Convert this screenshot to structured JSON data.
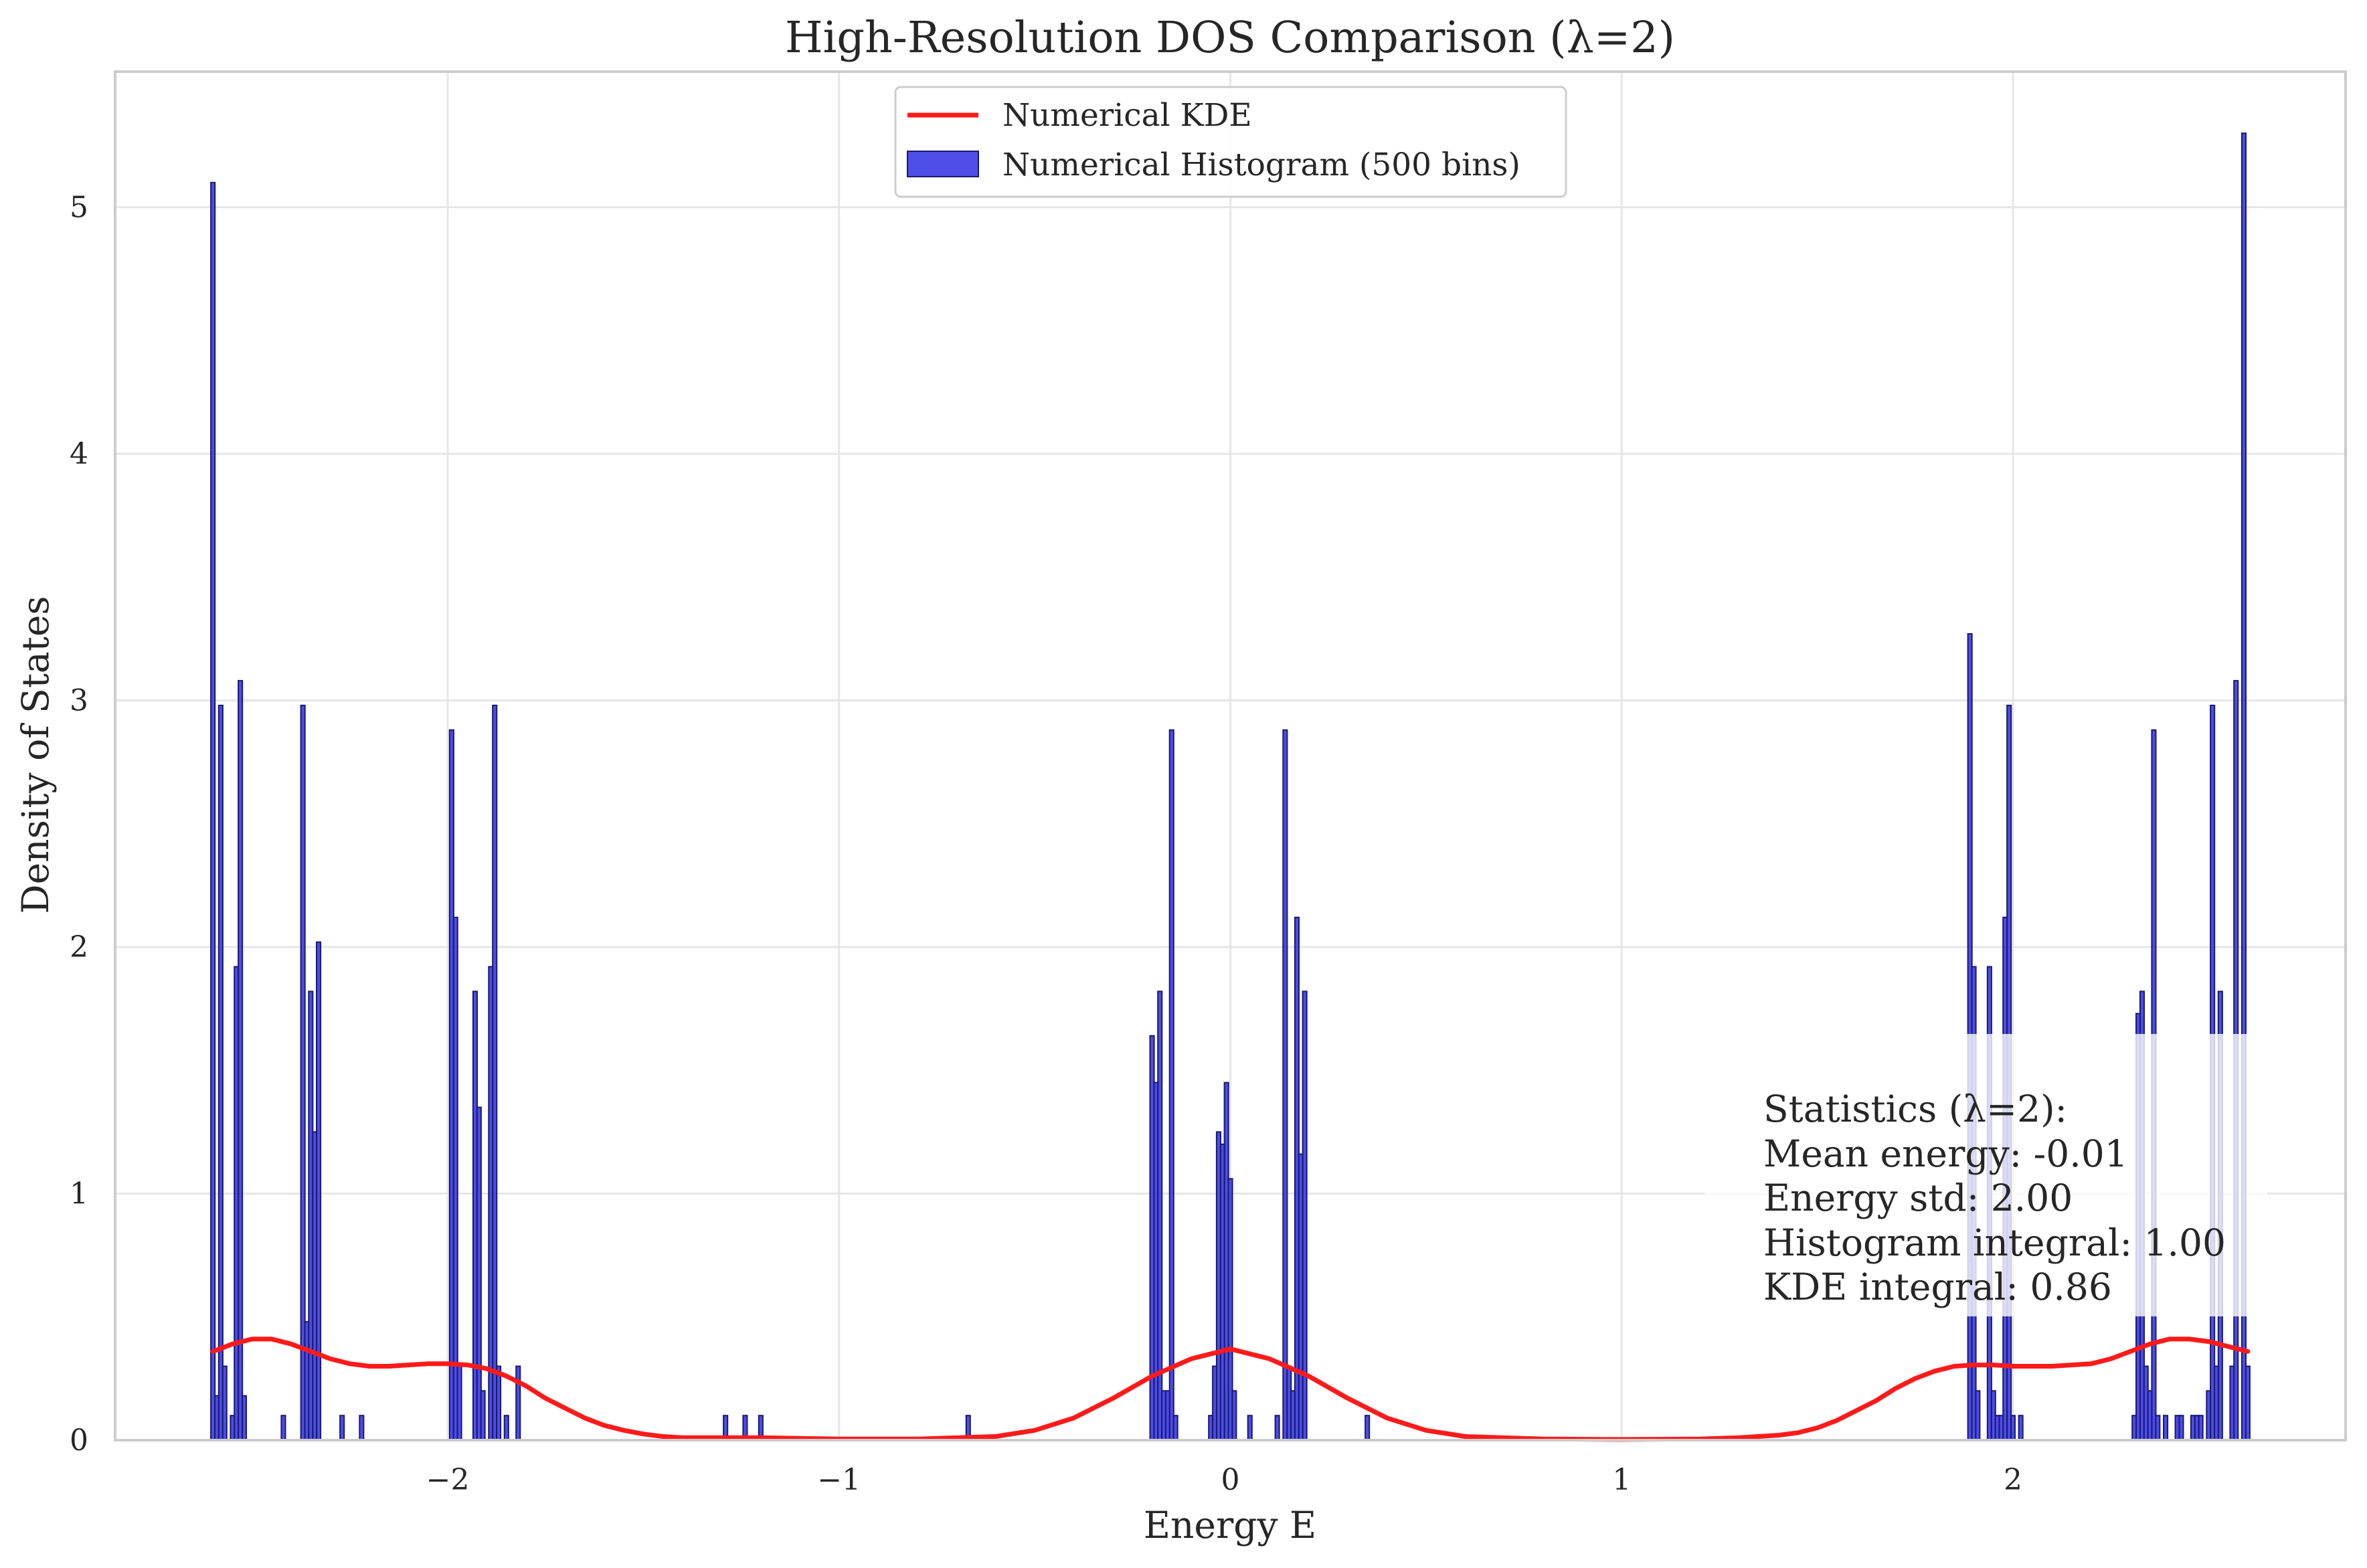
{
  "chart_data": {
    "type": "bar",
    "title": "High-Resolution DOS Comparison (λ=2)",
    "xlabel": "Energy E",
    "ylabel": "Density of States",
    "xlim": [
      -2.85,
      2.85
    ],
    "ylim": [
      0,
      5.55
    ],
    "xticks": [
      {
        "value": -2,
        "label": "−2"
      },
      {
        "value": -1,
        "label": "−1"
      },
      {
        "value": 0,
        "label": "0"
      },
      {
        "value": 1,
        "label": "1"
      },
      {
        "value": 2,
        "label": "2"
      }
    ],
    "yticks": [
      {
        "value": 0,
        "label": "0"
      },
      {
        "value": 1,
        "label": "1"
      },
      {
        "value": 2,
        "label": "2"
      },
      {
        "value": 3,
        "label": "3"
      },
      {
        "value": 4,
        "label": "4"
      },
      {
        "value": 5,
        "label": "5"
      }
    ],
    "grid": true,
    "legend_position": "upper center",
    "colors": {
      "histogram": "#3a3ae6",
      "histogram_edge": "#1a1a6e",
      "kde": "#ff1a1a",
      "grid": "#e6e6e6",
      "spine": "#cccccc"
    },
    "series": [
      {
        "name": "Numerical Histogram (500 bins)",
        "kind": "histogram",
        "bin_width": 0.0104,
        "bins": [
          [
            -2.6,
            5.1
          ],
          [
            -2.59,
            0.18
          ],
          [
            -2.58,
            2.98
          ],
          [
            -2.57,
            0.3
          ],
          [
            -2.55,
            0.1
          ],
          [
            -2.54,
            1.92
          ],
          [
            -2.53,
            3.08
          ],
          [
            -2.52,
            0.18
          ],
          [
            -2.42,
            0.1
          ],
          [
            -2.37,
            2.98
          ],
          [
            -2.36,
            0.48
          ],
          [
            -2.35,
            1.82
          ],
          [
            -2.34,
            1.25
          ],
          [
            -2.33,
            2.02
          ],
          [
            -2.27,
            0.1
          ],
          [
            -2.22,
            0.1
          ],
          [
            -1.99,
            2.88
          ],
          [
            -1.98,
            2.12
          ],
          [
            -1.97,
            0.3
          ],
          [
            -1.93,
            1.82
          ],
          [
            -1.92,
            1.35
          ],
          [
            -1.91,
            0.2
          ],
          [
            -1.89,
            1.92
          ],
          [
            -1.88,
            2.98
          ],
          [
            -1.87,
            0.3
          ],
          [
            -1.85,
            0.1
          ],
          [
            -1.82,
            0.3
          ],
          [
            -1.29,
            0.1
          ],
          [
            -1.24,
            0.1
          ],
          [
            -1.2,
            0.1
          ],
          [
            -0.67,
            0.1
          ],
          [
            -0.2,
            1.64
          ],
          [
            -0.19,
            1.45
          ],
          [
            -0.18,
            1.82
          ],
          [
            -0.17,
            0.2
          ],
          [
            -0.16,
            0.2
          ],
          [
            -0.15,
            2.88
          ],
          [
            -0.14,
            0.1
          ],
          [
            -0.05,
            0.1
          ],
          [
            -0.04,
            0.3
          ],
          [
            -0.03,
            1.25
          ],
          [
            -0.02,
            1.2
          ],
          [
            -0.01,
            1.45
          ],
          [
            0.0,
            1.06
          ],
          [
            0.01,
            0.2
          ],
          [
            0.05,
            0.1
          ],
          [
            0.12,
            0.1
          ],
          [
            0.14,
            2.88
          ],
          [
            0.15,
            0.3
          ],
          [
            0.16,
            0.2
          ],
          [
            0.17,
            2.12
          ],
          [
            0.18,
            1.16
          ],
          [
            0.19,
            1.82
          ],
          [
            0.35,
            0.1
          ],
          [
            1.89,
            3.27
          ],
          [
            1.9,
            1.92
          ],
          [
            1.91,
            0.2
          ],
          [
            1.94,
            1.92
          ],
          [
            1.95,
            0.2
          ],
          [
            1.96,
            0.1
          ],
          [
            1.97,
            0.1
          ],
          [
            1.98,
            2.12
          ],
          [
            1.99,
            2.98
          ],
          [
            2.0,
            0.1
          ],
          [
            2.02,
            0.1
          ],
          [
            2.31,
            0.1
          ],
          [
            2.32,
            1.73
          ],
          [
            2.33,
            1.82
          ],
          [
            2.34,
            0.3
          ],
          [
            2.35,
            0.2
          ],
          [
            2.36,
            2.88
          ],
          [
            2.37,
            0.1
          ],
          [
            2.39,
            0.1
          ],
          [
            2.42,
            0.1
          ],
          [
            2.43,
            0.1
          ],
          [
            2.46,
            0.1
          ],
          [
            2.47,
            0.1
          ],
          [
            2.48,
            0.1
          ],
          [
            2.5,
            0.2
          ],
          [
            2.51,
            2.98
          ],
          [
            2.52,
            0.3
          ],
          [
            2.53,
            1.82
          ],
          [
            2.56,
            0.3
          ],
          [
            2.57,
            3.08
          ],
          [
            2.59,
            5.3
          ],
          [
            2.6,
            0.3
          ]
        ]
      },
      {
        "name": "Numerical KDE",
        "kind": "line",
        "x": [
          -2.6,
          -2.55,
          -2.5,
          -2.45,
          -2.4,
          -2.35,
          -2.3,
          -2.25,
          -2.2,
          -2.15,
          -2.1,
          -2.05,
          -2.0,
          -1.95,
          -1.9,
          -1.85,
          -1.8,
          -1.75,
          -1.7,
          -1.65,
          -1.6,
          -1.55,
          -1.5,
          -1.45,
          -1.4,
          -1.3,
          -1.2,
          -1.0,
          -0.8,
          -0.6,
          -0.5,
          -0.4,
          -0.3,
          -0.2,
          -0.1,
          0.0,
          0.1,
          0.2,
          0.3,
          0.4,
          0.5,
          0.6,
          0.8,
          1.0,
          1.2,
          1.3,
          1.4,
          1.45,
          1.5,
          1.55,
          1.6,
          1.65,
          1.7,
          1.75,
          1.8,
          1.85,
          1.9,
          1.95,
          2.0,
          2.05,
          2.1,
          2.15,
          2.2,
          2.25,
          2.3,
          2.35,
          2.4,
          2.45,
          2.5,
          2.55,
          2.6
        ],
        "y": [
          0.36,
          0.39,
          0.41,
          0.41,
          0.39,
          0.36,
          0.33,
          0.31,
          0.3,
          0.3,
          0.305,
          0.31,
          0.31,
          0.305,
          0.29,
          0.26,
          0.22,
          0.17,
          0.13,
          0.09,
          0.06,
          0.04,
          0.025,
          0.015,
          0.01,
          0.01,
          0.01,
          0.005,
          0.005,
          0.015,
          0.04,
          0.09,
          0.17,
          0.26,
          0.33,
          0.37,
          0.33,
          0.26,
          0.17,
          0.09,
          0.04,
          0.015,
          0.005,
          0.003,
          0.005,
          0.01,
          0.02,
          0.03,
          0.05,
          0.08,
          0.12,
          0.16,
          0.21,
          0.25,
          0.28,
          0.3,
          0.305,
          0.305,
          0.3,
          0.3,
          0.3,
          0.305,
          0.31,
          0.33,
          0.36,
          0.39,
          0.41,
          0.41,
          0.4,
          0.38,
          0.36
        ]
      }
    ],
    "stats_box": {
      "lines": [
        "Statistics (λ=2):",
        "Mean energy: -0.01",
        "Energy std: 2.00",
        "Histogram integral: 1.00",
        "KDE integral: 0.86"
      ],
      "position": "lower right"
    }
  }
}
